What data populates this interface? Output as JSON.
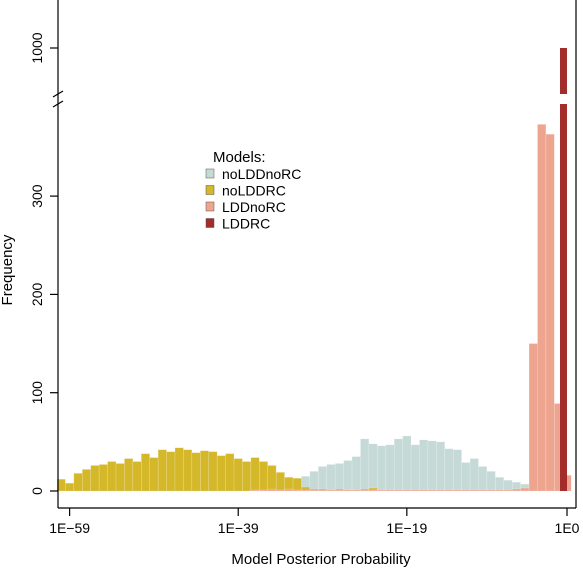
{
  "chart_data": {
    "type": "bar",
    "title": "",
    "xlabel": "Model Posterior Probability",
    "ylabel": "Frequency",
    "x_scale": "log10",
    "x_ticks": [
      {
        "exp": -59,
        "label": "1E−59"
      },
      {
        "exp": -39,
        "label": "1E−39"
      },
      {
        "exp": -19,
        "label": "1E−19"
      },
      {
        "exp": 0,
        "label": "1E0"
      }
    ],
    "y_ticks": [
      {
        "value": 0,
        "label": "0"
      },
      {
        "value": 100,
        "label": "100"
      },
      {
        "value": 200,
        "label": "200"
      },
      {
        "value": 300,
        "label": "300"
      }
    ],
    "y_break": {
      "below": 390,
      "resumes_at": 1000,
      "label": "1000"
    },
    "bin_width_log10": 1,
    "legend": {
      "title": "Models:",
      "placement": "upper-center",
      "entries": [
        "noLDDnoRC",
        "noLDDRC",
        "LDDnoRC",
        "LDDRC"
      ]
    },
    "series": [
      {
        "name": "noLDDnoRC",
        "color": "#c5d9d6",
        "bins": [
          {
            "x": -38,
            "y": 1
          },
          {
            "x": -37,
            "y": 1
          },
          {
            "x": -36,
            "y": 2
          },
          {
            "x": -35,
            "y": 3
          },
          {
            "x": -34,
            "y": 5
          },
          {
            "x": -33,
            "y": 8
          },
          {
            "x": -32,
            "y": 12
          },
          {
            "x": -31,
            "y": 15
          },
          {
            "x": -30,
            "y": 20
          },
          {
            "x": -29,
            "y": 25
          },
          {
            "x": -28,
            "y": 27
          },
          {
            "x": -27,
            "y": 28
          },
          {
            "x": -26,
            "y": 31
          },
          {
            "x": -25,
            "y": 35
          },
          {
            "x": -24,
            "y": 53
          },
          {
            "x": -23,
            "y": 48
          },
          {
            "x": -22,
            "y": 46
          },
          {
            "x": -21,
            "y": 47
          },
          {
            "x": -20,
            "y": 53
          },
          {
            "x": -19,
            "y": 56
          },
          {
            "x": -18,
            "y": 47
          },
          {
            "x": -17,
            "y": 52
          },
          {
            "x": -16,
            "y": 51
          },
          {
            "x": -15,
            "y": 50
          },
          {
            "x": -14,
            "y": 43
          },
          {
            "x": -13,
            "y": 42
          },
          {
            "x": -12,
            "y": 29
          },
          {
            "x": -11,
            "y": 33
          },
          {
            "x": -10,
            "y": 25
          },
          {
            "x": -9,
            "y": 20
          },
          {
            "x": -8,
            "y": 14
          },
          {
            "x": -7,
            "y": 11
          },
          {
            "x": -6,
            "y": 9
          },
          {
            "x": -5,
            "y": 7
          },
          {
            "x": -4,
            "y": 4
          },
          {
            "x": -3,
            "y": 3
          },
          {
            "x": -2,
            "y": 2
          }
        ]
      },
      {
        "name": "noLDDRC",
        "color": "#d4b82a",
        "bins": [
          {
            "x": -60,
            "y": 12
          },
          {
            "x": -59,
            "y": 8
          },
          {
            "x": -58,
            "y": 18
          },
          {
            "x": -57,
            "y": 22
          },
          {
            "x": -56,
            "y": 26
          },
          {
            "x": -55,
            "y": 27
          },
          {
            "x": -54,
            "y": 30
          },
          {
            "x": -53,
            "y": 28
          },
          {
            "x": -52,
            "y": 33
          },
          {
            "x": -51,
            "y": 30
          },
          {
            "x": -50,
            "y": 38
          },
          {
            "x": -49,
            "y": 34
          },
          {
            "x": -48,
            "y": 42
          },
          {
            "x": -47,
            "y": 40
          },
          {
            "x": -46,
            "y": 44
          },
          {
            "x": -45,
            "y": 42
          },
          {
            "x": -44,
            "y": 39
          },
          {
            "x": -43,
            "y": 41
          },
          {
            "x": -42,
            "y": 40
          },
          {
            "x": -41,
            "y": 36
          },
          {
            "x": -40,
            "y": 38
          },
          {
            "x": -39,
            "y": 33
          },
          {
            "x": -38,
            "y": 30
          },
          {
            "x": -37,
            "y": 34
          },
          {
            "x": -36,
            "y": 30
          },
          {
            "x": -35,
            "y": 26
          },
          {
            "x": -34,
            "y": 19
          },
          {
            "x": -33,
            "y": 14
          },
          {
            "x": -32,
            "y": 13
          },
          {
            "x": -31,
            "y": 4
          },
          {
            "x": -30,
            "y": 2
          },
          {
            "x": -29,
            "y": 2
          },
          {
            "x": -28,
            "y": 1
          },
          {
            "x": -27,
            "y": 2
          },
          {
            "x": -26,
            "y": 1
          },
          {
            "x": -25,
            "y": 1
          },
          {
            "x": -24,
            "y": 2
          },
          {
            "x": -23,
            "y": 3
          }
        ]
      },
      {
        "name": "LDDnoRC",
        "color": "#eea58f",
        "bins": [
          {
            "x": -37,
            "y": 1
          },
          {
            "x": -36,
            "y": 1
          },
          {
            "x": -35,
            "y": 2
          },
          {
            "x": -34,
            "y": 1
          },
          {
            "x": -33,
            "y": 2
          },
          {
            "x": -32,
            "y": 1
          },
          {
            "x": -31,
            "y": 1
          },
          {
            "x": -30,
            "y": 1
          },
          {
            "x": -29,
            "y": 1
          },
          {
            "x": -28,
            "y": 1
          },
          {
            "x": -27,
            "y": 1
          },
          {
            "x": -26,
            "y": 1
          },
          {
            "x": -25,
            "y": 1
          },
          {
            "x": -24,
            "y": 1
          },
          {
            "x": -23,
            "y": 1
          },
          {
            "x": -22,
            "y": 1
          },
          {
            "x": -21,
            "y": 1
          },
          {
            "x": -20,
            "y": 1
          },
          {
            "x": -19,
            "y": 1
          },
          {
            "x": -18,
            "y": 1
          },
          {
            "x": -17,
            "y": 1
          },
          {
            "x": -16,
            "y": 1
          },
          {
            "x": -15,
            "y": 1
          },
          {
            "x": -14,
            "y": 1
          },
          {
            "x": -13,
            "y": 1
          },
          {
            "x": -12,
            "y": 1
          },
          {
            "x": -11,
            "y": 1
          },
          {
            "x": -10,
            "y": 1
          },
          {
            "x": -9,
            "y": 1
          },
          {
            "x": -8,
            "y": 1
          },
          {
            "x": -7,
            "y": 1
          },
          {
            "x": -6,
            "y": 2
          },
          {
            "x": -5,
            "y": 3
          },
          {
            "x": -4,
            "y": 150
          },
          {
            "x": -3,
            "y": 373
          },
          {
            "x": -2,
            "y": 363
          },
          {
            "x": -1,
            "y": 89
          },
          {
            "x": 0,
            "y": 16
          }
        ]
      },
      {
        "name": "LDDRC",
        "color": "#a32d2a",
        "bins": [
          {
            "x": 0,
            "y": 1000
          }
        ]
      }
    ]
  }
}
